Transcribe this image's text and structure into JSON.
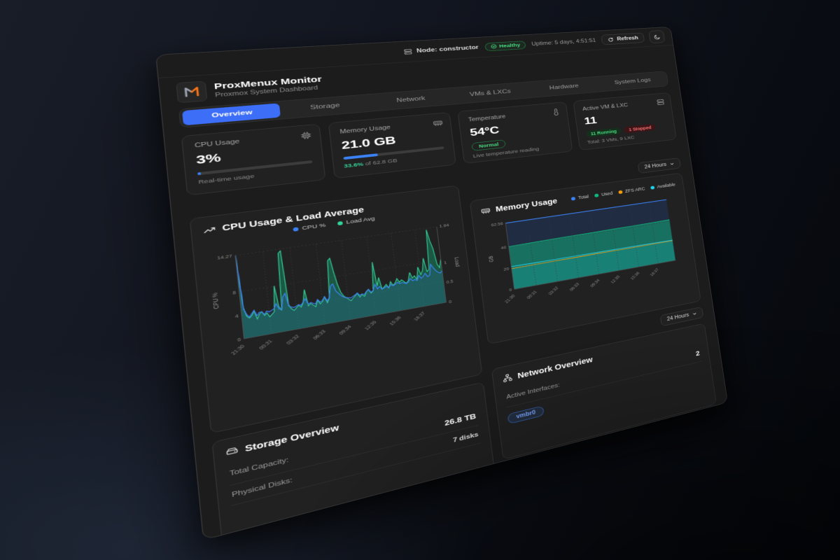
{
  "topbar": {
    "node_label": "Node: constructor",
    "health_label": "Healthy",
    "uptime": "Uptime: 5 days, 4:51:51",
    "refresh_label": "Refresh"
  },
  "header": {
    "title": "ProxMenux Monitor",
    "subtitle": "Proxmox System Dashboard"
  },
  "tabs": [
    {
      "label": "Overview",
      "active": true
    },
    {
      "label": "Storage",
      "active": false
    },
    {
      "label": "Network",
      "active": false
    },
    {
      "label": "VMs & LXCs",
      "active": false
    },
    {
      "label": "Hardware",
      "active": false
    },
    {
      "label": "System Logs",
      "active": false
    }
  ],
  "stats": {
    "cpu": {
      "label": "CPU Usage",
      "value": "3%",
      "percent": 3,
      "caption": "Real-time usage"
    },
    "memory": {
      "label": "Memory Usage",
      "value": "21.0 GB",
      "percent": 33.6,
      "caption_pct": "33.6%",
      "caption_rest": " of 62.8 GB"
    },
    "temperature": {
      "label": "Temperature",
      "value": "54°C",
      "badge": "Normal",
      "caption": "Live temperature reading"
    },
    "vms": {
      "label": "Active VM & LXC",
      "value": "11",
      "running_badge": "11 Running",
      "stopped_badge": "1 Stopped",
      "caption": "Total: 3 VMs, 9 LXC"
    }
  },
  "time_range": {
    "value": "24 Hours"
  },
  "time_range2": {
    "value": "24 Hours"
  },
  "colors": {
    "accent_blue": "#3c6ef7",
    "green": "#22c55e",
    "red": "#ef4444",
    "cyan": "#22d3ee",
    "orange": "#f59e0b"
  },
  "chart_data": [
    {
      "type": "area",
      "title": "CPU Usage & Load Average",
      "x_labels": [
        "21:30",
        "00:31",
        "03:32",
        "06:33",
        "09:34",
        "12:35",
        "15:36",
        "18:37"
      ],
      "ylabel_left": "CPU %",
      "ylabel_right": "Load",
      "ylim_left": [
        0,
        14.27
      ],
      "ylim_right": [
        0,
        1.94
      ],
      "yticks_left": [
        0,
        4,
        8
      ],
      "ymax_left_label": "14.27",
      "yticks_right": [
        0,
        0.5,
        1
      ],
      "ymax_right_label": "1.94",
      "legend": [
        "CPU %",
        "Load Avg"
      ],
      "grid": true,
      "legend_position": "top-center",
      "series": [
        {
          "name": "CPU %",
          "axis": "left",
          "color": "#3b82f6",
          "values": [
            14.27,
            5,
            4,
            3.5,
            4,
            4.5,
            3.5,
            4,
            4,
            3.5,
            4,
            3.8,
            4,
            4.2,
            5,
            4,
            3.8,
            6,
            6.5,
            4.2,
            4,
            3.8,
            4,
            4.2,
            4,
            4.5,
            5,
            4,
            4.2,
            4,
            3.8,
            4.5,
            4,
            4.2,
            4.8,
            4,
            4.5,
            6.5,
            6.8,
            5.5,
            5,
            4.5,
            4.2,
            4,
            3.9,
            3.8,
            4,
            4.2,
            4.5,
            4,
            4.2,
            4,
            4.5,
            4.8,
            4.2,
            4.5,
            5.5,
            4.6,
            5,
            4.4,
            4.6,
            4.8,
            4.5,
            5,
            4.7,
            4.9,
            5.2,
            4.9,
            5,
            4.9,
            4.7,
            4.9,
            5.5,
            5,
            5.2,
            4.9,
            5.8,
            5.2,
            5.5,
            6,
            5.3,
            5.5,
            7.5,
            6.8,
            6.2,
            5.8,
            5.6,
            6
          ]
        },
        {
          "name": "Load Avg",
          "axis": "right",
          "color": "#34d399",
          "values": [
            1.9,
            0.7,
            0.5,
            0.45,
            0.5,
            0.6,
            0.4,
            0.5,
            0.55,
            0.45,
            0.5,
            0.4,
            0.45,
            0.5,
            1.1,
            0.6,
            0.5,
            1.85,
            1.9,
            0.6,
            0.5,
            0.45,
            0.5,
            0.55,
            0.5,
            0.6,
            0.9,
            0.5,
            0.55,
            0.5,
            0.45,
            0.6,
            0.5,
            0.55,
            0.65,
            0.5,
            0.6,
            1.5,
            1.55,
            1.2,
            0.9,
            0.7,
            0.6,
            0.55,
            0.5,
            0.45,
            0.5,
            0.55,
            0.6,
            0.5,
            0.55,
            0.5,
            0.6,
            0.65,
            0.55,
            0.6,
            1.3,
            0.7,
            0.9,
            0.6,
            0.65,
            0.7,
            0.6,
            0.75,
            0.65,
            0.7,
            0.8,
            0.7,
            0.75,
            0.7,
            0.65,
            0.7,
            0.9,
            0.75,
            0.8,
            0.7,
            1.0,
            0.8,
            0.9,
            1.2,
            0.85,
            0.9,
            1.9,
            1.6,
            1.4,
            1.0,
            0.9,
            1.1
          ]
        }
      ]
    },
    {
      "type": "area",
      "title": "Memory Usage",
      "x_labels": [
        "21:30",
        "00:31",
        "03:32",
        "06:33",
        "09:34",
        "12:35",
        "15:36",
        "18:37"
      ],
      "ylabel": "GB",
      "ylim": [
        0,
        62.56
      ],
      "yticks": [
        0,
        20,
        40
      ],
      "ymax_label": "62.56",
      "legend": [
        "Total",
        "Used",
        "ZFS ARC",
        "Available"
      ],
      "grid": true,
      "legend_position": "top-right",
      "series": [
        {
          "name": "Total",
          "color": "#3b82f6",
          "values": [
            62.56,
            62.56,
            62.56,
            62.56,
            62.56,
            62.56,
            62.56,
            62.56,
            62.56
          ]
        },
        {
          "name": "Used",
          "color": "#10b981",
          "values": [
            40.2,
            40.5,
            40.7,
            40.9,
            41.0,
            41.2,
            41.3,
            41.5,
            41.8
          ]
        },
        {
          "name": "ZFS ARC",
          "color": "#f59e0b",
          "values": [
            19.4,
            19.6,
            19.7,
            19.8,
            19.9,
            20.0,
            20.0,
            20.1,
            20.1
          ]
        },
        {
          "name": "Available",
          "color": "#22d3ee",
          "values": [
            21.4,
            21.3,
            21.2,
            21.2,
            21.1,
            21.1,
            21.0,
            20.9,
            20.8
          ]
        }
      ]
    }
  ],
  "storage": {
    "title": "Storage Overview",
    "rows": [
      {
        "label": "Total Capacity:",
        "value": "26.8 TB"
      },
      {
        "label": "Physical Disks:",
        "value": "7 disks"
      }
    ]
  },
  "network": {
    "title": "Network Overview",
    "rows": [
      {
        "label": "Active Interfaces:",
        "value": "2"
      }
    ],
    "badges": [
      "vmbr0"
    ]
  }
}
